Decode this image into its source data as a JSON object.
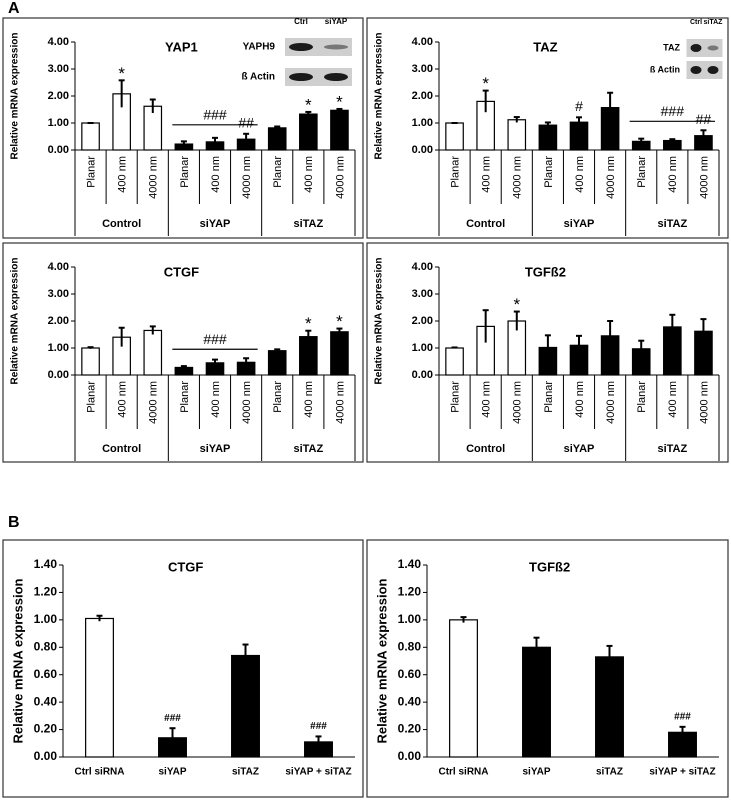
{
  "panel_labels": [
    "A",
    "B"
  ],
  "chart_data": [
    {
      "type": "bar",
      "title": "YAP1",
      "y_label": "Relative mRNA expression",
      "categories": [
        "Planar",
        "400 nm",
        "4000 nm",
        "Planar",
        "400 nm",
        "4000 nm",
        "Planar",
        "400 nm",
        "4000 nm"
      ],
      "groups": [
        "Control",
        "siYAP",
        "siTAZ"
      ],
      "values": [
        1.0,
        2.08,
        1.62,
        0.22,
        0.3,
        0.4,
        0.82,
        1.33,
        1.47
      ],
      "errors": [
        0,
        0.5,
        0.25,
        0.1,
        0.15,
        0.2,
        0.05,
        0.08,
        0.05
      ],
      "colors": [
        "#ffffff",
        "#ffffff",
        "#ffffff",
        "#000000",
        "#000000",
        "#000000",
        "#000000",
        "#000000",
        "#000000"
      ],
      "ylim": [
        0,
        4
      ],
      "yticks": [
        {
          "value": 0,
          "label": "0.00"
        },
        {
          "value": 1,
          "label": "1.00"
        },
        {
          "value": 2,
          "label": "2.00"
        },
        {
          "value": 3,
          "label": "3.00"
        },
        {
          "value": 4,
          "label": "4.00"
        }
      ],
      "annotations": [
        {
          "text": "*",
          "categories": [
            1
          ]
        },
        {
          "text": "###",
          "categories": [
            3,
            4,
            5
          ]
        },
        {
          "text": "##",
          "categories": [
            5
          ]
        },
        {
          "text": "*",
          "categories": [
            7
          ]
        },
        {
          "text": "*",
          "categories": [
            8
          ]
        }
      ],
      "blot": {
        "columns": [
          "Ctrl",
          "siYAP"
        ],
        "rows": [
          "YAPH9",
          "ß Actin"
        ]
      }
    },
    {
      "type": "bar",
      "title": "TAZ",
      "y_label": "Relative mRNA expression",
      "categories": [
        "Planar",
        "400 nm",
        "4000 nm",
        "Planar",
        "400 nm",
        "4000 nm",
        "Planar",
        "400 nm",
        "4000 nm"
      ],
      "groups": [
        "Control",
        "siYAP",
        "siTAZ"
      ],
      "values": [
        1.0,
        1.8,
        1.12,
        0.92,
        1.03,
        1.57,
        0.32,
        0.35,
        0.53
      ],
      "errors": [
        0,
        0.4,
        0.1,
        0.1,
        0.18,
        0.55,
        0.1,
        0.05,
        0.2
      ],
      "colors": [
        "#ffffff",
        "#ffffff",
        "#ffffff",
        "#000000",
        "#000000",
        "#000000",
        "#000000",
        "#000000",
        "#000000"
      ],
      "ylim": [
        0,
        4
      ],
      "yticks": [
        {
          "value": 0,
          "label": "0.00"
        },
        {
          "value": 1,
          "label": "1.00"
        },
        {
          "value": 2,
          "label": "2.00"
        },
        {
          "value": 3,
          "label": "3.00"
        },
        {
          "value": 4,
          "label": "4.00"
        }
      ],
      "annotations": [
        {
          "text": "*",
          "categories": [
            1
          ]
        },
        {
          "text": "#",
          "categories": [
            4
          ]
        },
        {
          "text": "###",
          "categories": [
            6,
            7,
            8
          ]
        },
        {
          "text": "##",
          "categories": [
            8
          ]
        }
      ],
      "blot": {
        "columns": [
          "Ctrl",
          "siTAZ"
        ],
        "rows": [
          "TAZ",
          "ß Actin"
        ]
      }
    },
    {
      "type": "bar",
      "title": "CTGF",
      "y_label": "Relative mRNA expression",
      "categories": [
        "Planar",
        "400 nm",
        "4000 nm",
        "Planar",
        "400 nm",
        "4000 nm",
        "Planar",
        "400 nm",
        "4000 nm"
      ],
      "groups": [
        "Control",
        "siYAP",
        "siTAZ"
      ],
      "values": [
        1.0,
        1.4,
        1.65,
        0.28,
        0.45,
        0.47,
        0.9,
        1.42,
        1.6
      ],
      "errors": [
        0.03,
        0.35,
        0.15,
        0.05,
        0.12,
        0.15,
        0.05,
        0.22,
        0.12
      ],
      "colors": [
        "#ffffff",
        "#ffffff",
        "#ffffff",
        "#000000",
        "#000000",
        "#000000",
        "#000000",
        "#000000",
        "#000000"
      ],
      "ylim": [
        0,
        4
      ],
      "yticks": [
        {
          "value": 0,
          "label": "0.00"
        },
        {
          "value": 1,
          "label": "1.00"
        },
        {
          "value": 2,
          "label": "2.00"
        },
        {
          "value": 3,
          "label": "3.00"
        },
        {
          "value": 4,
          "label": "4.00"
        }
      ],
      "annotations": [
        {
          "text": "###",
          "categories": [
            3,
            4,
            5
          ]
        },
        {
          "text": "*",
          "categories": [
            7
          ]
        },
        {
          "text": "*",
          "categories": [
            8
          ]
        }
      ]
    },
    {
      "type": "bar",
      "title": "TGFß2",
      "y_label": "Relative mRNA expression",
      "categories": [
        "Planar",
        "400 nm",
        "4000 nm",
        "Planar",
        "400 nm",
        "4000 nm",
        "Planar",
        "400 nm",
        "4000 nm"
      ],
      "groups": [
        "Control",
        "siYAP",
        "siTAZ"
      ],
      "values": [
        1.0,
        1.8,
        2.0,
        1.02,
        1.1,
        1.45,
        0.97,
        1.78,
        1.62
      ],
      "errors": [
        0.02,
        0.6,
        0.35,
        0.45,
        0.35,
        0.55,
        0.3,
        0.45,
        0.45
      ],
      "colors": [
        "#ffffff",
        "#ffffff",
        "#ffffff",
        "#000000",
        "#000000",
        "#000000",
        "#000000",
        "#000000",
        "#000000"
      ],
      "ylim": [
        0,
        4
      ],
      "yticks": [
        {
          "value": 0,
          "label": "0.00"
        },
        {
          "value": 1,
          "label": "1.00"
        },
        {
          "value": 2,
          "label": "2.00"
        },
        {
          "value": 3,
          "label": "3.00"
        },
        {
          "value": 4,
          "label": "4.00"
        }
      ],
      "annotations": [
        {
          "text": "*",
          "categories": [
            2
          ]
        }
      ]
    },
    {
      "type": "bar",
      "title": "CTGF",
      "y_label": "Relative mRNA expression",
      "categories": [
        "Ctrl siRNA",
        "siYAP",
        "siTAZ",
        "siYAP + siTAZ"
      ],
      "values": [
        1.01,
        0.14,
        0.74,
        0.11
      ],
      "errors": [
        0.02,
        0.07,
        0.08,
        0.04
      ],
      "colors": [
        "#ffffff",
        "#000000",
        "#000000",
        "#000000"
      ],
      "ylim": [
        0,
        1.4
      ],
      "yticks": [
        {
          "value": 0,
          "label": "0.00"
        },
        {
          "value": 0.2,
          "label": "0.20"
        },
        {
          "value": 0.4,
          "label": "0.40"
        },
        {
          "value": 0.6,
          "label": "0.60"
        },
        {
          "value": 0.8,
          "label": "0.80"
        },
        {
          "value": 1,
          "label": "1.00"
        },
        {
          "value": 1.2,
          "label": "1.20"
        },
        {
          "value": 1.4,
          "label": "1.40"
        }
      ],
      "annotations": [
        {
          "text": "###",
          "categories": [
            1
          ]
        },
        {
          "text": "###",
          "categories": [
            3
          ]
        }
      ]
    },
    {
      "type": "bar",
      "title": "TGFß2",
      "y_label": "Relative mRNA expression",
      "categories": [
        "Ctrl siRNA",
        "siYAP",
        "siTAZ",
        "siYAP + siTAZ"
      ],
      "values": [
        1.0,
        0.8,
        0.73,
        0.18
      ],
      "errors": [
        0.02,
        0.07,
        0.08,
        0.04
      ],
      "colors": [
        "#ffffff",
        "#000000",
        "#000000",
        "#000000"
      ],
      "ylim": [
        0,
        1.4
      ],
      "yticks": [
        {
          "value": 0,
          "label": "0.00"
        },
        {
          "value": 0.2,
          "label": "0.20"
        },
        {
          "value": 0.4,
          "label": "0.40"
        },
        {
          "value": 0.6,
          "label": "0.60"
        },
        {
          "value": 0.8,
          "label": "0.80"
        },
        {
          "value": 1,
          "label": "1.00"
        },
        {
          "value": 1.2,
          "label": "1.20"
        },
        {
          "value": 1.4,
          "label": "1.40"
        }
      ],
      "annotations": [
        {
          "text": "###",
          "categories": [
            3
          ]
        }
      ]
    }
  ]
}
